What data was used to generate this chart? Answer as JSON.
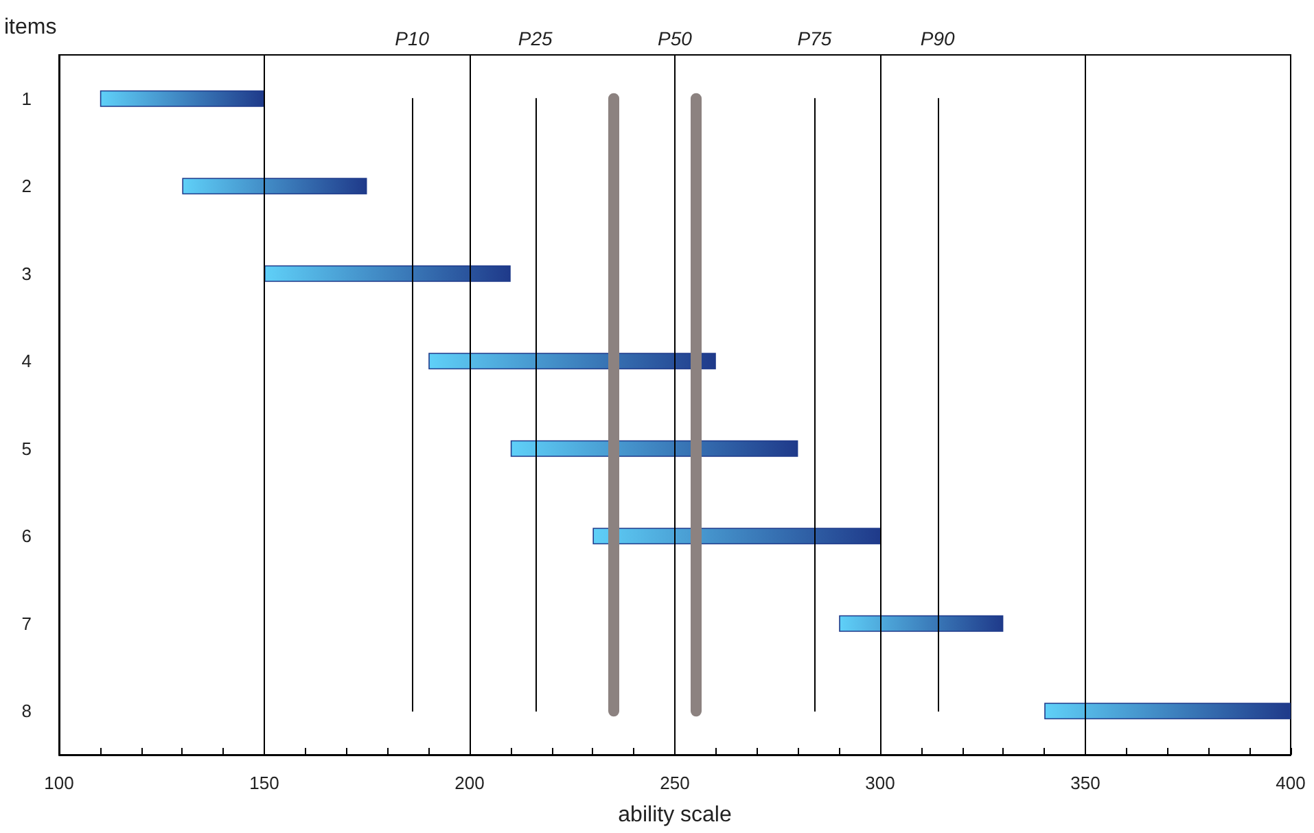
{
  "chart_data": {
    "type": "bar",
    "orientation": "horizontal",
    "xlabel": "ability scale",
    "ylabel": "items",
    "categories": [
      "1",
      "2",
      "3",
      "4",
      "5",
      "6",
      "7",
      "8"
    ],
    "base": [
      110,
      130,
      150,
      190,
      210,
      230,
      290,
      340
    ],
    "values": [
      40,
      45,
      60,
      70,
      70,
      70,
      40,
      60
    ],
    "color": "#1f3a8a",
    "xlim": [
      100,
      400
    ],
    "xticks": [
      100,
      {
        "value": 110,
        "label": null
      },
      {
        "value": 120,
        "label": null
      },
      {
        "value": 130,
        "label": null
      },
      {
        "value": 140,
        "label": null
      },
      150,
      {
        "value": 160,
        "label": null
      },
      {
        "value": 170,
        "label": null
      },
      {
        "value": 180,
        "label": null
      },
      {
        "value": 190,
        "label": null
      },
      200,
      {
        "value": 210,
        "label": null
      },
      {
        "value": 220,
        "label": null
      },
      {
        "value": 230,
        "label": null
      },
      {
        "value": 240,
        "label": null
      },
      250,
      {
        "value": 260,
        "label": null
      },
      {
        "value": 270,
        "label": null
      },
      {
        "value": 280,
        "label": null
      },
      {
        "value": 290,
        "label": null
      },
      300,
      {
        "value": 310,
        "label": null
      },
      {
        "value": 320,
        "label": null
      },
      {
        "value": 330,
        "label": null
      },
      {
        "value": 340,
        "label": null
      },
      350,
      {
        "value": 360,
        "label": null
      },
      {
        "value": 370,
        "label": null
      },
      {
        "value": 380,
        "label": null
      },
      {
        "value": 390,
        "label": null
      },
      400
    ],
    "grid": "x",
    "ref_lines": [
      {
        "axis": "x",
        "value": 186,
        "label": "P10",
        "color": "#000000"
      },
      {
        "axis": "x",
        "value": 216,
        "label": "P25",
        "color": "#000000"
      },
      {
        "axis": "x",
        "value": 250,
        "label": "P50",
        "color": "#000000"
      },
      {
        "axis": "x",
        "value": 284,
        "label": "P75",
        "color": "#000000"
      },
      {
        "axis": "x",
        "value": 314,
        "label": "P90",
        "color": "#000000"
      },
      {
        "axis": "x",
        "value": 235,
        "label": null,
        "color": "#8c8280"
      },
      {
        "axis": "x",
        "value": 255,
        "label": null,
        "color": "#8c8280"
      }
    ]
  }
}
